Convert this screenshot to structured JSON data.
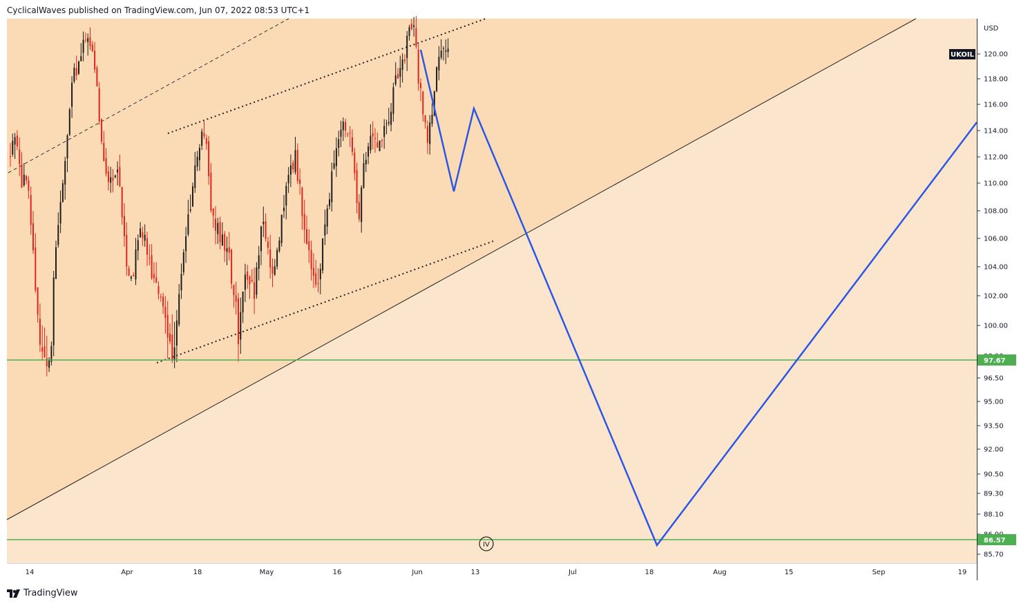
{
  "attribution": "CyclicalWaves published on TradingView.com, Jun 07, 2022 08:53 UTC+1",
  "footer": {
    "brand": "TradingView",
    "icon": "tradingview-logo-icon"
  },
  "colors": {
    "upper_zone": "#fbdbb6",
    "lower_zone": "#fbe5cc",
    "candle_up": "#1c1c1c",
    "candle_down": "#e0241b",
    "projection": "#2a56e6",
    "support": "#4caf50",
    "trendline": "#222222"
  },
  "chart_data": {
    "type": "candlestick",
    "symbol": "UKOIL",
    "currency": "USD",
    "y_ticks": [
      "120.00",
      "118.00",
      "116.00",
      "114.00",
      "112.00",
      "110.00",
      "108.00",
      "106.00",
      "104.00",
      "102.00",
      "100.00",
      "98.90",
      "96.50",
      "95.00",
      "93.50",
      "92.00",
      "90.50",
      "89.30",
      "88.10",
      "86.90",
      "85.70"
    ],
    "x_ticks": [
      "14",
      "Apr",
      "18",
      "May",
      "16",
      "Jun",
      "13",
      "Jul",
      "18",
      "Aug",
      "15",
      "Sep",
      "19"
    ],
    "support_levels": [
      {
        "label": "97.67",
        "value": 97.67
      },
      {
        "label": "86.57",
        "value": 86.57
      }
    ],
    "wave_label": "IV",
    "projection_path": [
      120.2,
      109.5,
      115.7,
      86.2,
      114.6
    ],
    "last_price_approx": 119.8
  }
}
